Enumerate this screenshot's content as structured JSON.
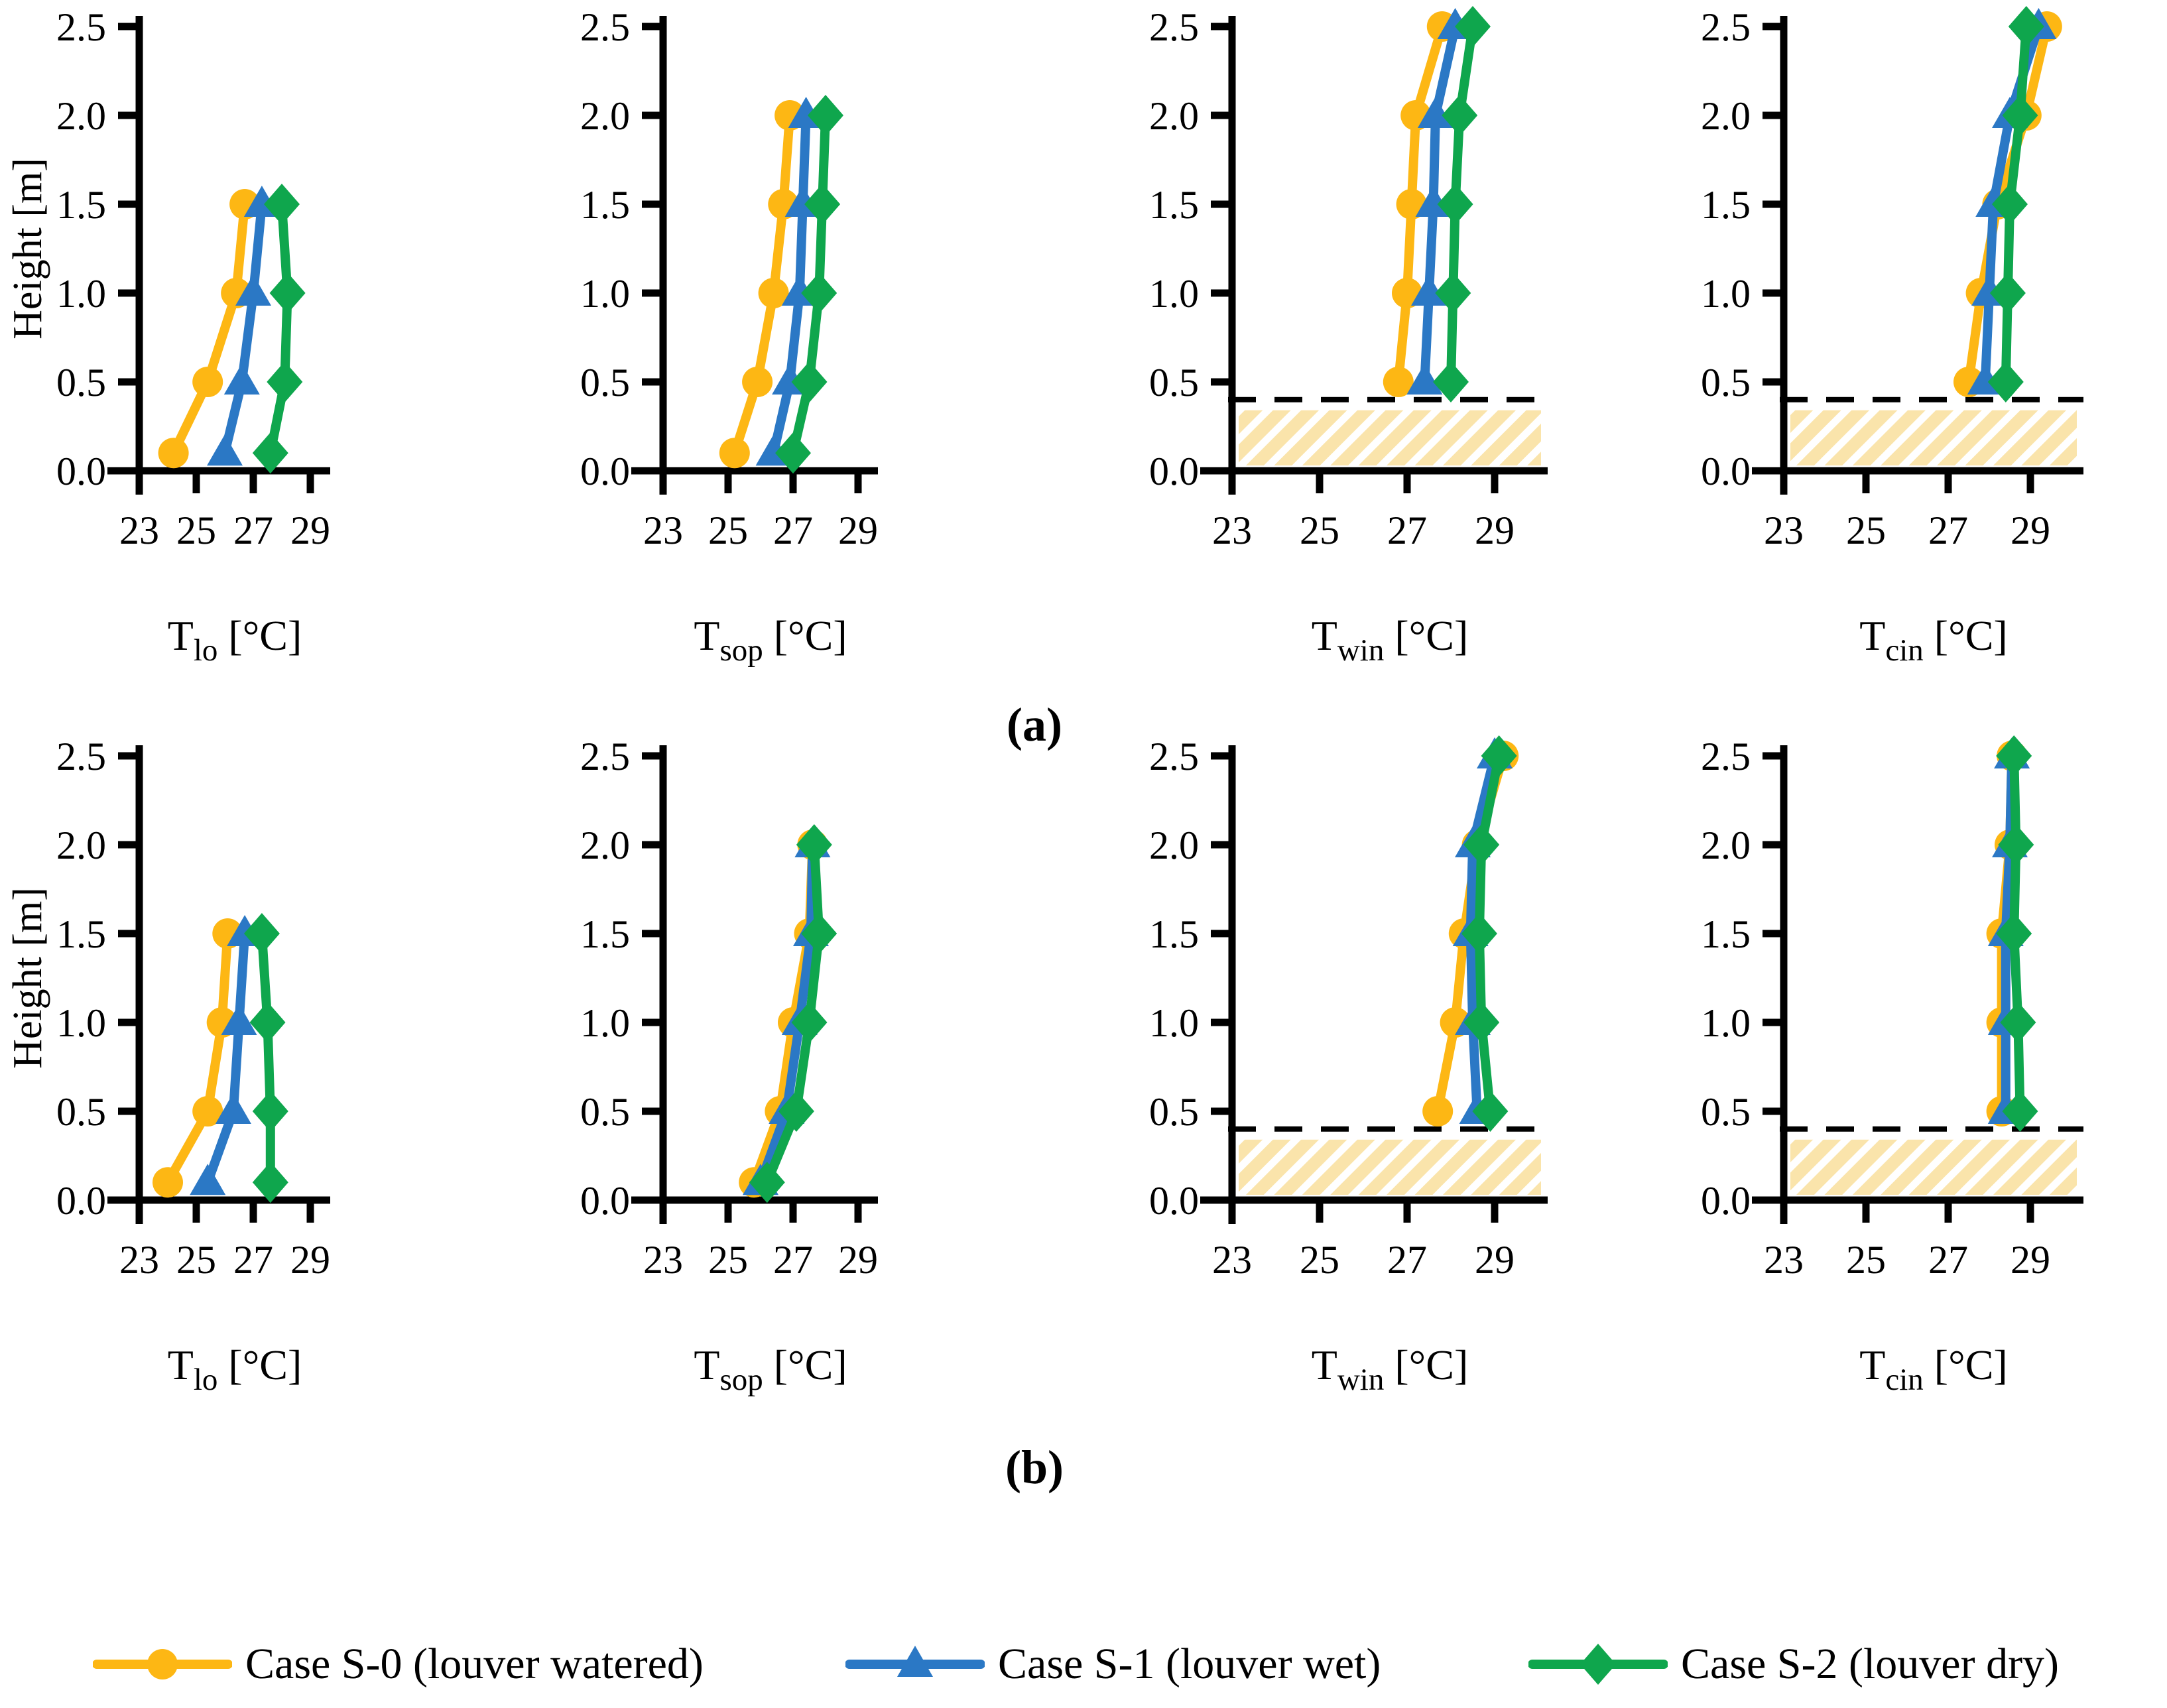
{
  "figure": {
    "y_axis_title": "Height [m]",
    "panel_labels": {
      "a": "(a)",
      "b": "(b)"
    },
    "colors": {
      "s0": "#FDB714",
      "s1": "#2B78C5",
      "s2": "#0FA64D",
      "axis": "#000000",
      "hatch_fill": "#FAE4AB",
      "background": "#FFFFFF"
    },
    "legend": {
      "position": "bottom",
      "items": [
        {
          "label": "Case S-0 (louver watered)",
          "marker": "circle",
          "color_key": "s0"
        },
        {
          "label": "Case S-1 (louver wet)",
          "marker": "triangle",
          "color_key": "s1"
        },
        {
          "label": "Case S-2 (louver dry)",
          "marker": "diamond",
          "color_key": "s2"
        }
      ]
    }
  },
  "chart_data": [
    {
      "type": "line",
      "panel": "a",
      "col": 0,
      "title": {
        "base": "T",
        "sub": "lo",
        "unit": "[°C]"
      },
      "ylabel": "Height [m]",
      "x_ticks": [
        23,
        25,
        27,
        29
      ],
      "y_ticks": [
        0.0,
        0.5,
        1.0,
        1.5,
        2.0,
        2.5
      ],
      "xlim": [
        23,
        29.7
      ],
      "ylim": [
        0,
        2.5
      ],
      "grid": false,
      "floor": false,
      "floor_height": null,
      "heights": [
        0.1,
        0.5,
        1.0,
        1.5
      ],
      "series": [
        {
          "name": "Case S-0 (louver watered)",
          "values": [
            24.2,
            25.4,
            26.4,
            26.7
          ]
        },
        {
          "name": "Case S-1 (louver wet)",
          "values": [
            26.0,
            26.6,
            27.0,
            27.3
          ]
        },
        {
          "name": "Case S-2 (louver dry)",
          "values": [
            27.6,
            28.1,
            28.2,
            28.0
          ]
        }
      ]
    },
    {
      "type": "line",
      "panel": "a",
      "col": 1,
      "title": {
        "base": "T",
        "sub": "sop",
        "unit": "[°C]"
      },
      "ylabel": null,
      "x_ticks": [
        23,
        25,
        27,
        29
      ],
      "y_ticks": [
        0.0,
        0.5,
        1.0,
        1.5,
        2.0,
        2.5
      ],
      "xlim": [
        23,
        29.7
      ],
      "ylim": [
        0,
        2.5
      ],
      "grid": false,
      "floor": false,
      "floor_height": null,
      "heights": [
        0.1,
        0.5,
        1.0,
        1.5,
        2.0
      ],
      "series": [
        {
          "name": "Case S-0 (louver watered)",
          "values": [
            25.2,
            25.9,
            26.4,
            26.7,
            26.9
          ]
        },
        {
          "name": "Case S-1 (louver wet)",
          "values": [
            26.4,
            26.9,
            27.2,
            27.3,
            27.4
          ]
        },
        {
          "name": "Case S-2 (louver dry)",
          "values": [
            27.0,
            27.5,
            27.8,
            27.9,
            28.0
          ]
        }
      ]
    },
    {
      "type": "line",
      "panel": "a",
      "col": 2,
      "title": {
        "base": "T",
        "sub": "win",
        "unit": "[°C]"
      },
      "ylabel": null,
      "x_ticks": [
        23,
        25,
        27,
        29
      ],
      "y_ticks": [
        0.0,
        0.5,
        1.0,
        1.5,
        2.0,
        2.5
      ],
      "xlim": [
        23,
        29.7
      ],
      "ylim": [
        0,
        2.5
      ],
      "grid": false,
      "floor": true,
      "floor_height": 0.4,
      "heights": [
        0.5,
        1.0,
        1.5,
        2.0,
        2.5
      ],
      "series": [
        {
          "name": "Case S-0 (louver watered)",
          "values": [
            26.8,
            27.0,
            27.1,
            27.2,
            27.8
          ]
        },
        {
          "name": "Case S-1 (louver wet)",
          "values": [
            27.4,
            27.5,
            27.6,
            27.65,
            28.1
          ]
        },
        {
          "name": "Case S-2 (louver dry)",
          "values": [
            28.0,
            28.05,
            28.1,
            28.2,
            28.5
          ]
        }
      ]
    },
    {
      "type": "line",
      "panel": "a",
      "col": 3,
      "title": {
        "base": "T",
        "sub": "cin",
        "unit": "[°C]"
      },
      "ylabel": null,
      "x_ticks": [
        23,
        25,
        27,
        29
      ],
      "y_ticks": [
        0.0,
        0.5,
        1.0,
        1.5,
        2.0,
        2.5
      ],
      "xlim": [
        23,
        29.7
      ],
      "ylim": [
        0,
        2.5
      ],
      "grid": false,
      "floor": true,
      "floor_height": 0.4,
      "heights": [
        0.5,
        1.0,
        1.5,
        2.0,
        2.5
      ],
      "series": [
        {
          "name": "Case S-0 (louver watered)",
          "values": [
            27.5,
            27.8,
            28.2,
            28.9,
            29.4
          ]
        },
        {
          "name": "Case S-1 (louver wet)",
          "values": [
            27.9,
            28.0,
            28.1,
            28.5,
            29.2
          ]
        },
        {
          "name": "Case S-2 (louver dry)",
          "values": [
            28.4,
            28.45,
            28.5,
            28.75,
            28.9
          ]
        }
      ]
    },
    {
      "type": "line",
      "panel": "b",
      "col": 0,
      "title": {
        "base": "T",
        "sub": "lo",
        "unit": "[°C]"
      },
      "ylabel": "Height [m]",
      "x_ticks": [
        23,
        25,
        27,
        29
      ],
      "y_ticks": [
        0.0,
        0.5,
        1.0,
        1.5,
        2.0,
        2.5
      ],
      "xlim": [
        23,
        29.7
      ],
      "ylim": [
        0,
        2.5
      ],
      "grid": false,
      "floor": false,
      "floor_height": null,
      "heights": [
        0.1,
        0.5,
        1.0,
        1.5
      ],
      "series": [
        {
          "name": "Case S-0 (louver watered)",
          "values": [
            24.0,
            25.4,
            25.9,
            26.1
          ]
        },
        {
          "name": "Case S-1 (louver wet)",
          "values": [
            25.4,
            26.3,
            26.5,
            26.7
          ]
        },
        {
          "name": "Case S-2 (louver dry)",
          "values": [
            27.6,
            27.6,
            27.5,
            27.3
          ]
        }
      ]
    },
    {
      "type": "line",
      "panel": "b",
      "col": 1,
      "title": {
        "base": "T",
        "sub": "sop",
        "unit": "[°C]"
      },
      "ylabel": null,
      "x_ticks": [
        23,
        25,
        27,
        29
      ],
      "y_ticks": [
        0.0,
        0.5,
        1.0,
        1.5,
        2.0,
        2.5
      ],
      "xlim": [
        23,
        29.7
      ],
      "ylim": [
        0,
        2.5
      ],
      "grid": false,
      "floor": false,
      "floor_height": null,
      "heights": [
        0.1,
        0.5,
        1.0,
        1.5,
        2.0
      ],
      "series": [
        {
          "name": "Case S-0 (louver watered)",
          "values": [
            25.8,
            26.6,
            27.0,
            27.5,
            27.6
          ]
        },
        {
          "name": "Case S-1 (louver wet)",
          "values": [
            26.0,
            26.8,
            27.2,
            27.55,
            27.6
          ]
        },
        {
          "name": "Case S-2 (louver dry)",
          "values": [
            26.2,
            27.1,
            27.5,
            27.8,
            27.65
          ]
        }
      ]
    },
    {
      "type": "line",
      "panel": "b",
      "col": 2,
      "title": {
        "base": "T",
        "sub": "win",
        "unit": "[°C]"
      },
      "ylabel": null,
      "x_ticks": [
        23,
        25,
        27,
        29
      ],
      "y_ticks": [
        0.0,
        0.5,
        1.0,
        1.5,
        2.0,
        2.5
      ],
      "xlim": [
        23,
        29.7
      ],
      "ylim": [
        0,
        2.5
      ],
      "grid": false,
      "floor": true,
      "floor_height": 0.4,
      "heights": [
        0.5,
        1.0,
        1.5,
        2.0,
        2.5
      ],
      "series": [
        {
          "name": "Case S-0 (louver watered)",
          "values": [
            27.7,
            28.1,
            28.3,
            28.6,
            29.2
          ]
        },
        {
          "name": "Case S-1 (louver wet)",
          "values": [
            28.6,
            28.5,
            28.45,
            28.5,
            29.0
          ]
        },
        {
          "name": "Case S-2 (louver dry)",
          "values": [
            28.9,
            28.7,
            28.65,
            28.7,
            29.1
          ]
        }
      ]
    },
    {
      "type": "line",
      "panel": "b",
      "col": 3,
      "title": {
        "base": "T",
        "sub": "cin",
        "unit": "[°C]"
      },
      "ylabel": null,
      "x_ticks": [
        23,
        25,
        27,
        29
      ],
      "y_ticks": [
        0.0,
        0.5,
        1.0,
        1.5,
        2.0,
        2.5
      ],
      "xlim": [
        23,
        29.7
      ],
      "ylim": [
        0,
        2.5
      ],
      "grid": false,
      "floor": true,
      "floor_height": 0.4,
      "heights": [
        0.5,
        1.0,
        1.5,
        2.0,
        2.5
      ],
      "series": [
        {
          "name": "Case S-0 (louver watered)",
          "values": [
            28.3,
            28.3,
            28.3,
            28.5,
            28.55
          ]
        },
        {
          "name": "Case S-1 (louver wet)",
          "values": [
            28.4,
            28.4,
            28.4,
            28.5,
            28.55
          ]
        },
        {
          "name": "Case S-2 (louver dry)",
          "values": [
            28.75,
            28.7,
            28.6,
            28.65,
            28.6
          ]
        }
      ]
    }
  ]
}
